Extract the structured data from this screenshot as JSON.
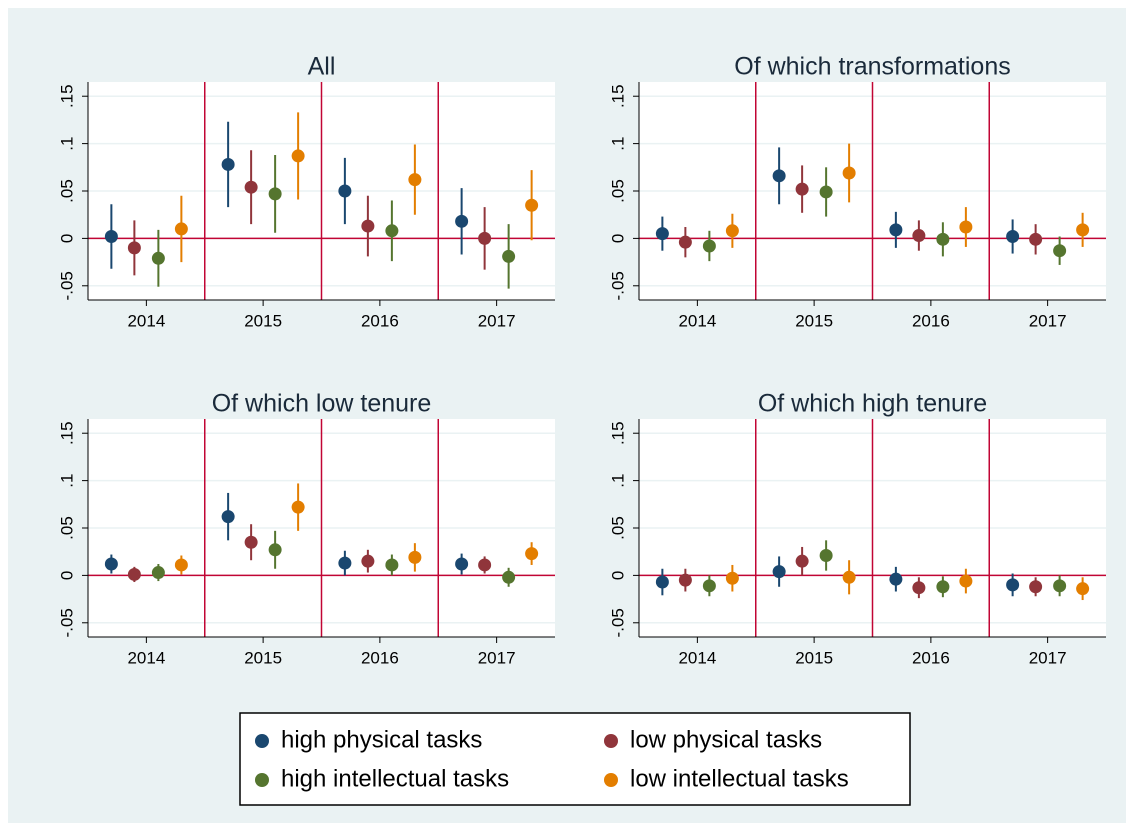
{
  "chart_data": [
    {
      "type": "errorbar",
      "title": "All",
      "categories": [
        "2014",
        "2015",
        "2016",
        "2017"
      ],
      "series": [
        {
          "name": "high physical tasks",
          "color": "#1a476f",
          "values": [
            0.002,
            0.078,
            0.05,
            0.018
          ],
          "errors": [
            0.034,
            0.045,
            0.035,
            0.035
          ]
        },
        {
          "name": "low physical tasks",
          "color": "#90353b",
          "values": [
            -0.01,
            0.054,
            0.013,
            0
          ],
          "errors": [
            0.029,
            0.039,
            0.032,
            0.033
          ]
        },
        {
          "name": "high intellectual tasks",
          "color": "#55752f",
          "values": [
            -0.021,
            0.047,
            0.008,
            -0.019
          ],
          "errors": [
            0.03,
            0.041,
            0.032,
            0.034
          ]
        },
        {
          "name": "low intellectual tasks",
          "color": "#e37e00",
          "values": [
            0.01,
            0.087,
            0.062,
            0.035
          ],
          "errors": [
            0.035,
            0.046,
            0.037,
            0.037
          ]
        }
      ],
      "ylim": [
        -0.065,
        0.165
      ],
      "yticks": [
        {
          "value": -0.05,
          "label": "-.05"
        },
        0,
        {
          "value": 0.05,
          "label": ".05"
        },
        {
          "value": 0.1,
          "label": ".1"
        },
        {
          "value": 0.15,
          "label": ".15"
        }
      ],
      "grid": true,
      "refline_color": "#c10534"
    },
    {
      "type": "errorbar",
      "title": "Of which transformations",
      "categories": [
        "2014",
        "2015",
        "2016",
        "2017"
      ],
      "series": [
        {
          "color": "#1a476f",
          "values": [
            0.005,
            0.066,
            0.009,
            0.002
          ],
          "errors": [
            0.018,
            0.03,
            0.019,
            0.018
          ]
        },
        {
          "color": "#90353b",
          "values": [
            -0.004,
            0.052,
            0.003,
            -0.001
          ],
          "errors": [
            0.016,
            0.025,
            0.016,
            0.016
          ]
        },
        {
          "color": "#55752f",
          "values": [
            -0.008,
            0.049,
            -0.001,
            -0.013
          ],
          "errors": [
            0.016,
            0.026,
            0.018,
            0.015
          ]
        },
        {
          "color": "#e37e00",
          "values": [
            0.008,
            0.069,
            0.012,
            0.009
          ],
          "errors": [
            0.018,
            0.031,
            0.021,
            0.018
          ]
        }
      ],
      "ylim": [
        -0.065,
        0.165
      ],
      "yticks": [
        {
          "value": -0.05,
          "label": "-.05"
        },
        0,
        {
          "value": 0.05,
          "label": ".05"
        },
        {
          "value": 0.1,
          "label": ".1"
        },
        {
          "value": 0.15,
          "label": ".15"
        }
      ],
      "grid": true,
      "refline_color": "#c10534"
    },
    {
      "type": "errorbar",
      "title": "Of which low tenure",
      "categories": [
        "2014",
        "2015",
        "2016",
        "2017"
      ],
      "series": [
        {
          "color": "#1a476f",
          "values": [
            0.012,
            0.062,
            0.013,
            0.012
          ],
          "errors": [
            0.01,
            0.025,
            0.013,
            0.011
          ]
        },
        {
          "color": "#90353b",
          "values": [
            0.001,
            0.035,
            0.015,
            0.011
          ],
          "errors": [
            0.008,
            0.019,
            0.012,
            0.009
          ]
        },
        {
          "color": "#55752f",
          "values": [
            0.003,
            0.027,
            0.011,
            -0.002
          ],
          "errors": [
            0.009,
            0.02,
            0.011,
            0.01
          ]
        },
        {
          "color": "#e37e00",
          "values": [
            0.011,
            0.072,
            0.019,
            0.023
          ],
          "errors": [
            0.01,
            0.025,
            0.015,
            0.012
          ]
        }
      ],
      "ylim": [
        -0.065,
        0.165
      ],
      "yticks": [
        {
          "value": -0.05,
          "label": "-.05"
        },
        0,
        {
          "value": 0.05,
          "label": ".05"
        },
        {
          "value": 0.1,
          "label": ".1"
        },
        {
          "value": 0.15,
          "label": ".15"
        }
      ],
      "grid": true,
      "refline_color": "#c10534"
    },
    {
      "type": "errorbar",
      "title": "Of which high tenure",
      "categories": [
        "2014",
        "2015",
        "2016",
        "2017"
      ],
      "series": [
        {
          "color": "#1a476f",
          "values": [
            -0.007,
            0.004,
            -0.004,
            -0.01
          ],
          "errors": [
            0.014,
            0.016,
            0.013,
            0.012
          ]
        },
        {
          "color": "#90353b",
          "values": [
            -0.005,
            0.015,
            -0.013,
            -0.012
          ],
          "errors": [
            0.012,
            0.015,
            0.011,
            0.01
          ]
        },
        {
          "color": "#55752f",
          "values": [
            -0.011,
            0.021,
            -0.012,
            -0.011
          ],
          "errors": [
            0.011,
            0.016,
            0.011,
            0.011
          ]
        },
        {
          "color": "#e37e00",
          "values": [
            -0.003,
            -0.002,
            -0.006,
            -0.014
          ],
          "errors": [
            0.014,
            0.018,
            0.013,
            0.012
          ]
        }
      ],
      "ylim": [
        -0.065,
        0.165
      ],
      "yticks": [
        {
          "value": -0.05,
          "label": "-.05"
        },
        0,
        {
          "value": 0.05,
          "label": ".05"
        },
        {
          "value": 0.1,
          "label": ".1"
        },
        {
          "value": 0.15,
          "label": ".15"
        }
      ],
      "grid": true,
      "refline_color": "#c10534"
    }
  ]
}
